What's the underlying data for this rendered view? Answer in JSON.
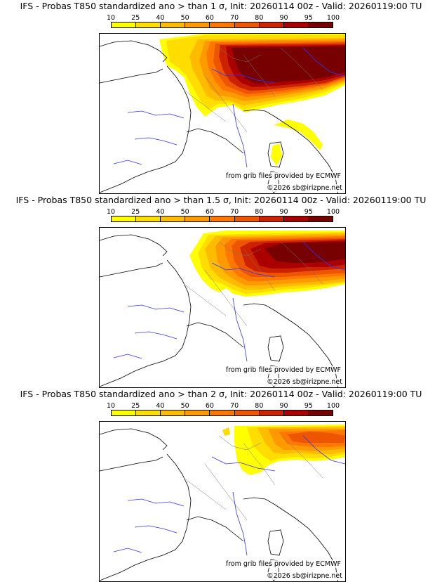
{
  "colorbar": {
    "ticks": [
      "10",
      "25",
      "40",
      "50",
      "60",
      "70",
      "80",
      "90",
      "95",
      "100"
    ],
    "colors": [
      "#ffff00",
      "#ffdd00",
      "#ffbb00",
      "#ff9900",
      "#ff7700",
      "#ee5500",
      "#cc2200",
      "#aa0000",
      "#770000"
    ]
  },
  "panels": [
    {
      "title": "IFS - Probas T850  standardized ano > than 1 σ, Init: 20260114 00z - Valid: 20260119:00 TU",
      "threshold_sigma": 1
    },
    {
      "title": "IFS - Probas T850  standardized ano > than 1.5 σ, Init: 20260114 00z - Valid: 20260119:00 TU",
      "threshold_sigma": 1.5
    },
    {
      "title": "IFS - Probas T850  standardized ano > than 2 σ, Init: 20260114 00z - Valid: 20260119:00 TU",
      "threshold_sigma": 2
    }
  ],
  "credits": {
    "source": "from grib files provided by ECMWF",
    "copyright": "©2026 sb@irizpne.net"
  }
}
